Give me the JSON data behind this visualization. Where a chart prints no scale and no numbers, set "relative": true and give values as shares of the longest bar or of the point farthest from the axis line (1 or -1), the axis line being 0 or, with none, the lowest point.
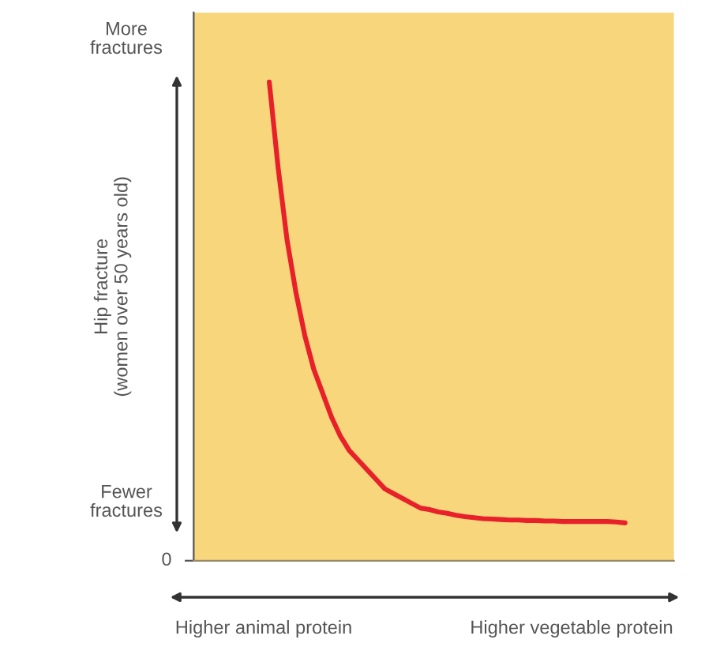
{
  "chart_data": {
    "type": "line",
    "relative": true,
    "ylabel": "Hip fracture\n(women over 50 years old)",
    "categories": [
      null,
      null,
      null,
      null,
      null,
      null,
      null,
      null,
      null,
      null,
      null,
      null,
      null,
      null,
      null,
      null,
      null,
      null,
      null,
      null,
      null,
      null,
      null,
      null,
      null,
      null,
      null,
      null,
      null,
      null,
      null,
      null,
      null,
      null,
      null,
      null,
      null,
      null,
      null,
      null,
      null,
      null,
      null,
      null,
      null,
      null,
      null,
      null,
      null,
      null,
      null,
      null,
      null,
      null
    ],
    "series": [
      {
        "color": "#e8202a",
        "values": [
          null,
          null,
          null,
          null,
          null,
          null,
          null,
          null,
          1.0,
          0.82,
          0.67,
          0.56,
          0.47,
          0.4,
          0.35,
          0.3,
          0.26,
          0.23,
          0.21,
          0.19,
          0.17,
          0.15,
          0.14,
          0.13,
          0.12,
          0.11,
          0.107,
          0.102,
          0.099,
          0.095,
          0.092,
          0.09,
          0.088,
          0.087,
          0.086,
          0.085,
          0.085,
          0.084,
          0.084,
          0.083,
          0.083,
          0.082,
          0.082,
          0.082,
          0.082,
          0.082,
          0.082,
          0.081,
          0.079,
          null,
          null,
          null,
          null,
          null
        ]
      }
    ],
    "annotations": [
      "More\nfractures",
      "Fewer\nfractures",
      "0",
      "Higher animal protein",
      "Higher vegetable protein"
    ],
    "grid": false,
    "legend": false,
    "marker": "none",
    "line_style": "solid"
  }
}
